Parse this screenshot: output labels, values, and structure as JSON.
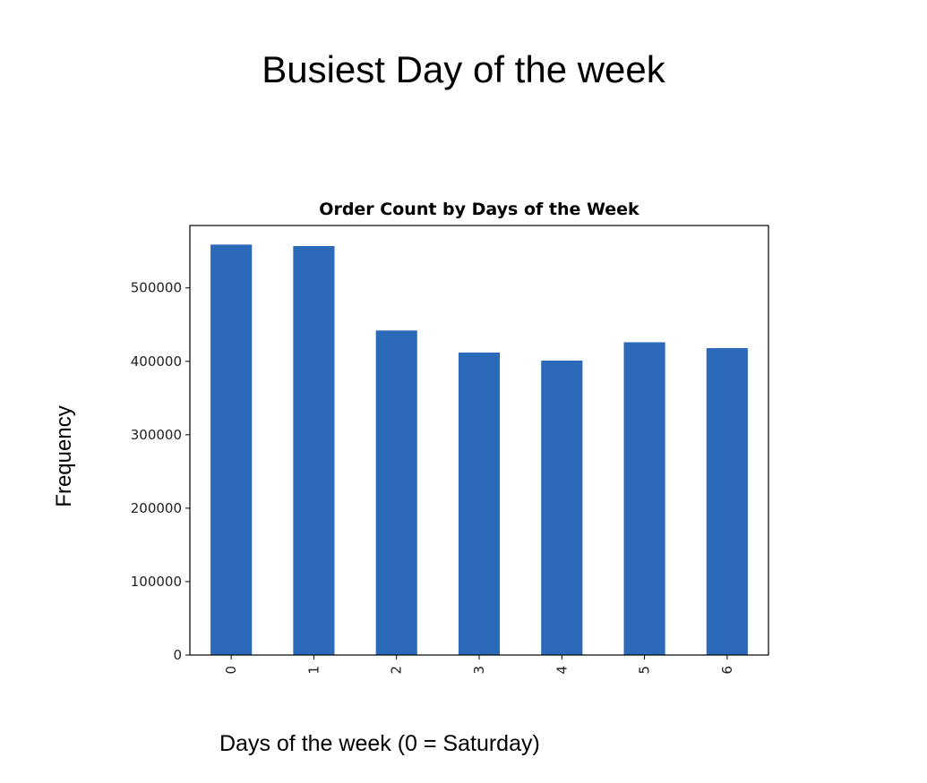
{
  "slide": {
    "title": "Busiest Day of the week",
    "y_caption": "Frequency",
    "x_caption": "Days of the week (0 = Saturday)"
  },
  "chart_data": {
    "type": "bar",
    "title": "Order Count by Days of the Week",
    "xlabel": "",
    "ylabel": "",
    "categories": [
      "0",
      "1",
      "2",
      "3",
      "4",
      "5",
      "6"
    ],
    "values": [
      559000,
      557000,
      442000,
      412000,
      401000,
      426000,
      418000
    ],
    "ylim": [
      0,
      585000
    ],
    "yticks": [
      0,
      100000,
      200000,
      300000,
      400000,
      500000
    ],
    "ytick_labels": [
      "0",
      "100000",
      "200000",
      "300000",
      "400000",
      "500000"
    ],
    "grid": false,
    "bar_color": "#2a6ab8",
    "x_tick_rotation": "vertical"
  }
}
